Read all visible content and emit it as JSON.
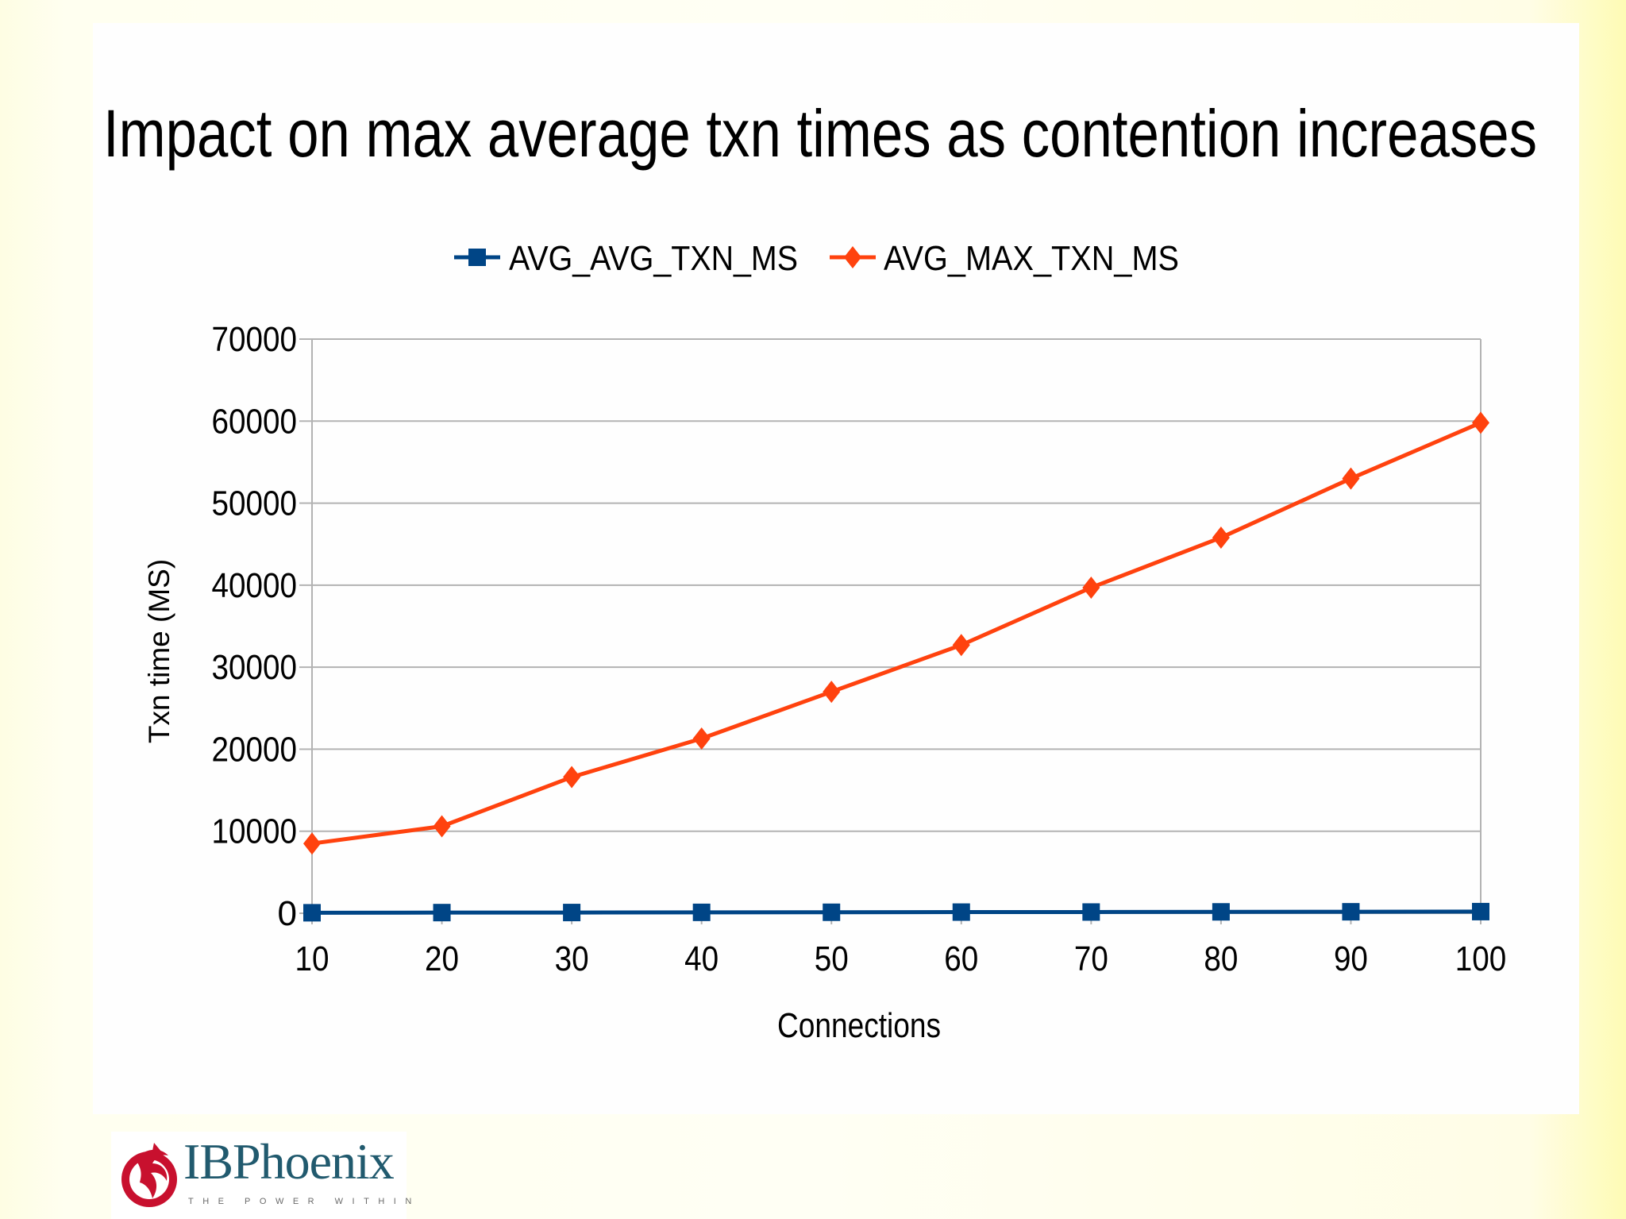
{
  "chart_data": {
    "type": "line",
    "title": "Impact on max average txn times as contention increases",
    "xlabel": "Connections",
    "ylabel": "Txn time (MS)",
    "x": [
      10,
      20,
      30,
      40,
      50,
      60,
      70,
      80,
      90,
      100
    ],
    "ylim": [
      0,
      70000
    ],
    "yticks": [
      0,
      10000,
      20000,
      30000,
      40000,
      50000,
      60000,
      70000
    ],
    "grid": true,
    "legend_position": "top",
    "series": [
      {
        "name": "AVG_AVG_TXN_MS",
        "color": "#004586",
        "marker": "square",
        "values": [
          60,
          80,
          90,
          110,
          120,
          140,
          150,
          170,
          180,
          200
        ]
      },
      {
        "name": "AVG_MAX_TXN_MS",
        "color": "#ff420e",
        "marker": "diamond",
        "values": [
          8500,
          10600,
          16600,
          21300,
          27000,
          32700,
          39700,
          45800,
          53000,
          59800
        ]
      }
    ]
  },
  "logo": {
    "text": "IBPhoenix",
    "tagline": "THE POWER WITHIN"
  }
}
